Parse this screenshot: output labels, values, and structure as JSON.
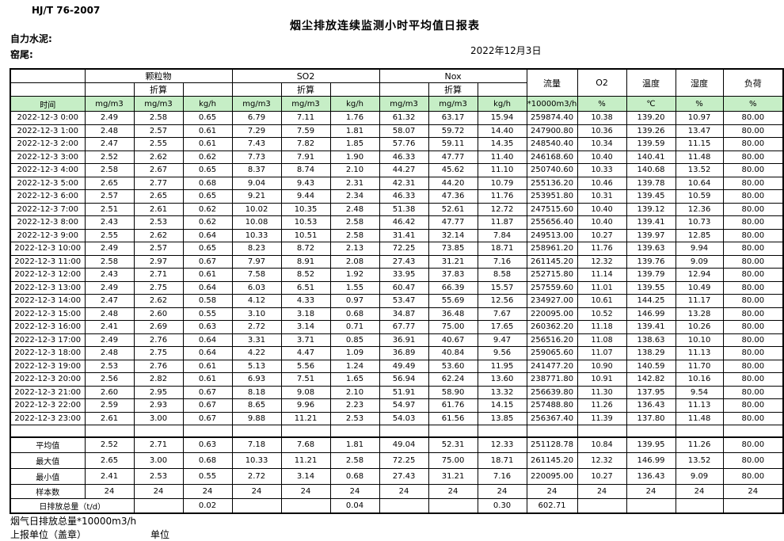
{
  "header": {
    "standard": "HJ/T  76-2007",
    "title": "烟尘排放连续监测小时平均值日报表",
    "company": "自力水泥:",
    "kiln": "窑尾:",
    "date": "2022年12月3日"
  },
  "table": {
    "time_label": "时间",
    "conversion_label": "折算",
    "groups": [
      "颗粒物",
      "SO2",
      "Nox"
    ],
    "scalar_columns": [
      "流量",
      "O2",
      "温度",
      "湿度",
      "负荷"
    ],
    "units": [
      "mg/m3",
      "mg/m3",
      "kg/h",
      "mg/m3",
      "mg/m3",
      "kg/h",
      "mg/m3",
      "mg/m3",
      "kg/h",
      "*10000m3/h",
      "%",
      "℃",
      "%",
      "%"
    ],
    "header_fill": "#c6eec6",
    "rows": [
      [
        "2022-12-3 0:00",
        "2.49",
        "2.58",
        "0.65",
        "6.79",
        "7.11",
        "1.76",
        "61.32",
        "63.17",
        "15.94",
        "259874.40",
        "10.38",
        "139.20",
        "10.97",
        "80.00"
      ],
      [
        "2022-12-3 1:00",
        "2.48",
        "2.57",
        "0.61",
        "7.29",
        "7.59",
        "1.81",
        "58.07",
        "59.72",
        "14.40",
        "247900.80",
        "10.36",
        "139.26",
        "13.47",
        "80.00"
      ],
      [
        "2022-12-3 2:00",
        "2.47",
        "2.55",
        "0.61",
        "7.43",
        "7.82",
        "1.85",
        "57.76",
        "59.11",
        "14.35",
        "248540.40",
        "10.34",
        "139.59",
        "11.15",
        "80.00"
      ],
      [
        "2022-12-3 3:00",
        "2.52",
        "2.62",
        "0.62",
        "7.73",
        "7.91",
        "1.90",
        "46.33",
        "47.77",
        "11.40",
        "246168.60",
        "10.40",
        "140.41",
        "11.48",
        "80.00"
      ],
      [
        "2022-12-3 4:00",
        "2.58",
        "2.67",
        "0.65",
        "8.37",
        "8.74",
        "2.10",
        "44.27",
        "45.62",
        "11.10",
        "250740.60",
        "10.33",
        "140.68",
        "13.52",
        "80.00"
      ],
      [
        "2022-12-3 5:00",
        "2.65",
        "2.77",
        "0.68",
        "9.04",
        "9.43",
        "2.31",
        "42.31",
        "44.20",
        "10.79",
        "255136.20",
        "10.46",
        "139.78",
        "10.64",
        "80.00"
      ],
      [
        "2022-12-3 6:00",
        "2.57",
        "2.65",
        "0.65",
        "9.21",
        "9.44",
        "2.34",
        "46.33",
        "47.36",
        "11.76",
        "253951.80",
        "10.31",
        "139.45",
        "10.59",
        "80.00"
      ],
      [
        "2022-12-3 7:00",
        "2.51",
        "2.61",
        "0.62",
        "10.02",
        "10.35",
        "2.48",
        "51.38",
        "52.61",
        "12.72",
        "247515.60",
        "10.40",
        "139.12",
        "12.36",
        "80.00"
      ],
      [
        "2022-12-3 8:00",
        "2.43",
        "2.53",
        "0.62",
        "10.08",
        "10.53",
        "2.58",
        "46.42",
        "47.77",
        "11.87",
        "255656.40",
        "10.40",
        "139.41",
        "10.73",
        "80.00"
      ],
      [
        "2022-12-3 9:00",
        "2.55",
        "2.62",
        "0.64",
        "10.33",
        "10.51",
        "2.58",
        "31.41",
        "32.14",
        "7.84",
        "249513.00",
        "10.27",
        "139.97",
        "12.85",
        "80.00"
      ],
      [
        "2022-12-3 10:00",
        "2.49",
        "2.57",
        "0.65",
        "8.23",
        "8.72",
        "2.13",
        "72.25",
        "73.85",
        "18.71",
        "258961.20",
        "11.76",
        "139.63",
        "9.94",
        "80.00"
      ],
      [
        "2022-12-3 11:00",
        "2.58",
        "2.97",
        "0.67",
        "7.97",
        "8.91",
        "2.08",
        "27.43",
        "31.21",
        "7.16",
        "261145.20",
        "12.32",
        "139.76",
        "9.09",
        "80.00"
      ],
      [
        "2022-12-3 12:00",
        "2.43",
        "2.71",
        "0.61",
        "7.58",
        "8.52",
        "1.92",
        "33.95",
        "37.83",
        "8.58",
        "252715.80",
        "11.14",
        "139.79",
        "12.94",
        "80.00"
      ],
      [
        "2022-12-3 13:00",
        "2.49",
        "2.75",
        "0.64",
        "6.03",
        "6.51",
        "1.55",
        "60.47",
        "66.39",
        "15.57",
        "257559.60",
        "11.01",
        "139.55",
        "10.49",
        "80.00"
      ],
      [
        "2022-12-3 14:00",
        "2.47",
        "2.62",
        "0.58",
        "4.12",
        "4.33",
        "0.97",
        "53.47",
        "55.69",
        "12.56",
        "234927.00",
        "10.61",
        "144.25",
        "11.17",
        "80.00"
      ],
      [
        "2022-12-3 15:00",
        "2.48",
        "2.60",
        "0.55",
        "3.10",
        "3.18",
        "0.68",
        "34.87",
        "36.48",
        "7.67",
        "220095.00",
        "10.52",
        "146.99",
        "13.28",
        "80.00"
      ],
      [
        "2022-12-3 16:00",
        "2.41",
        "2.69",
        "0.63",
        "2.72",
        "3.14",
        "0.71",
        "67.77",
        "75.00",
        "17.65",
        "260362.20",
        "11.18",
        "139.41",
        "10.26",
        "80.00"
      ],
      [
        "2022-12-3 17:00",
        "2.49",
        "2.76",
        "0.64",
        "3.31",
        "3.71",
        "0.85",
        "36.91",
        "40.67",
        "9.47",
        "256516.20",
        "11.08",
        "138.63",
        "10.10",
        "80.00"
      ],
      [
        "2022-12-3 18:00",
        "2.48",
        "2.75",
        "0.64",
        "4.22",
        "4.47",
        "1.09",
        "36.89",
        "40.84",
        "9.56",
        "259065.60",
        "11.07",
        "138.29",
        "11.13",
        "80.00"
      ],
      [
        "2022-12-3 19:00",
        "2.53",
        "2.76",
        "0.61",
        "5.13",
        "5.56",
        "1.24",
        "49.49",
        "53.60",
        "11.95",
        "241477.20",
        "10.90",
        "140.59",
        "11.70",
        "80.00"
      ],
      [
        "2022-12-3 20:00",
        "2.56",
        "2.82",
        "0.61",
        "6.93",
        "7.51",
        "1.65",
        "56.94",
        "62.24",
        "13.60",
        "238771.80",
        "10.91",
        "142.82",
        "10.16",
        "80.00"
      ],
      [
        "2022-12-3 21:00",
        "2.60",
        "2.95",
        "0.67",
        "8.18",
        "9.08",
        "2.10",
        "51.91",
        "58.90",
        "13.32",
        "256639.80",
        "11.30",
        "137.95",
        "9.54",
        "80.00"
      ],
      [
        "2022-12-3 22:00",
        "2.59",
        "2.93",
        "0.67",
        "8.65",
        "9.96",
        "2.23",
        "54.97",
        "61.76",
        "14.15",
        "257488.80",
        "11.26",
        "136.43",
        "11.13",
        "80.00"
      ],
      [
        "2022-12-3 23:00",
        "2.61",
        "3.00",
        "0.67",
        "9.88",
        "11.21",
        "2.53",
        "54.03",
        "61.56",
        "13.85",
        "256367.40",
        "11.39",
        "137.80",
        "11.48",
        "80.00"
      ]
    ],
    "summary": [
      [
        "平均值",
        "2.52",
        "2.71",
        "0.63",
        "7.18",
        "7.68",
        "1.81",
        "49.04",
        "52.31",
        "12.33",
        "251128.78",
        "10.84",
        "139.95",
        "11.26",
        "80.00"
      ],
      [
        "最大值",
        "2.65",
        "3.00",
        "0.68",
        "10.33",
        "11.21",
        "2.58",
        "72.25",
        "75.00",
        "18.71",
        "261145.20",
        "12.32",
        "146.99",
        "13.52",
        "80.00"
      ],
      [
        "最小值",
        "2.41",
        "2.53",
        "0.55",
        "2.72",
        "3.14",
        "0.68",
        "27.43",
        "31.21",
        "7.16",
        "220095.00",
        "10.27",
        "136.43",
        "9.09",
        "80.00"
      ],
      [
        "样本数",
        "24",
        "24",
        "24",
        "24",
        "24",
        "24",
        "24",
        "24",
        "24",
        "24",
        "24",
        "24",
        "24",
        "24"
      ]
    ],
    "total_row": {
      "label": "日排放总量（t/d）",
      "values": [
        "",
        "0.02",
        "",
        "",
        "0.04",
        "",
        "",
        "0.30",
        "602.71",
        "",
        "",
        "",
        ""
      ]
    }
  },
  "footer": {
    "line1": "烟气日排放总量*10000m3/h",
    "line2_left": "上报单位（盖章）",
    "line2_right": "单位"
  }
}
